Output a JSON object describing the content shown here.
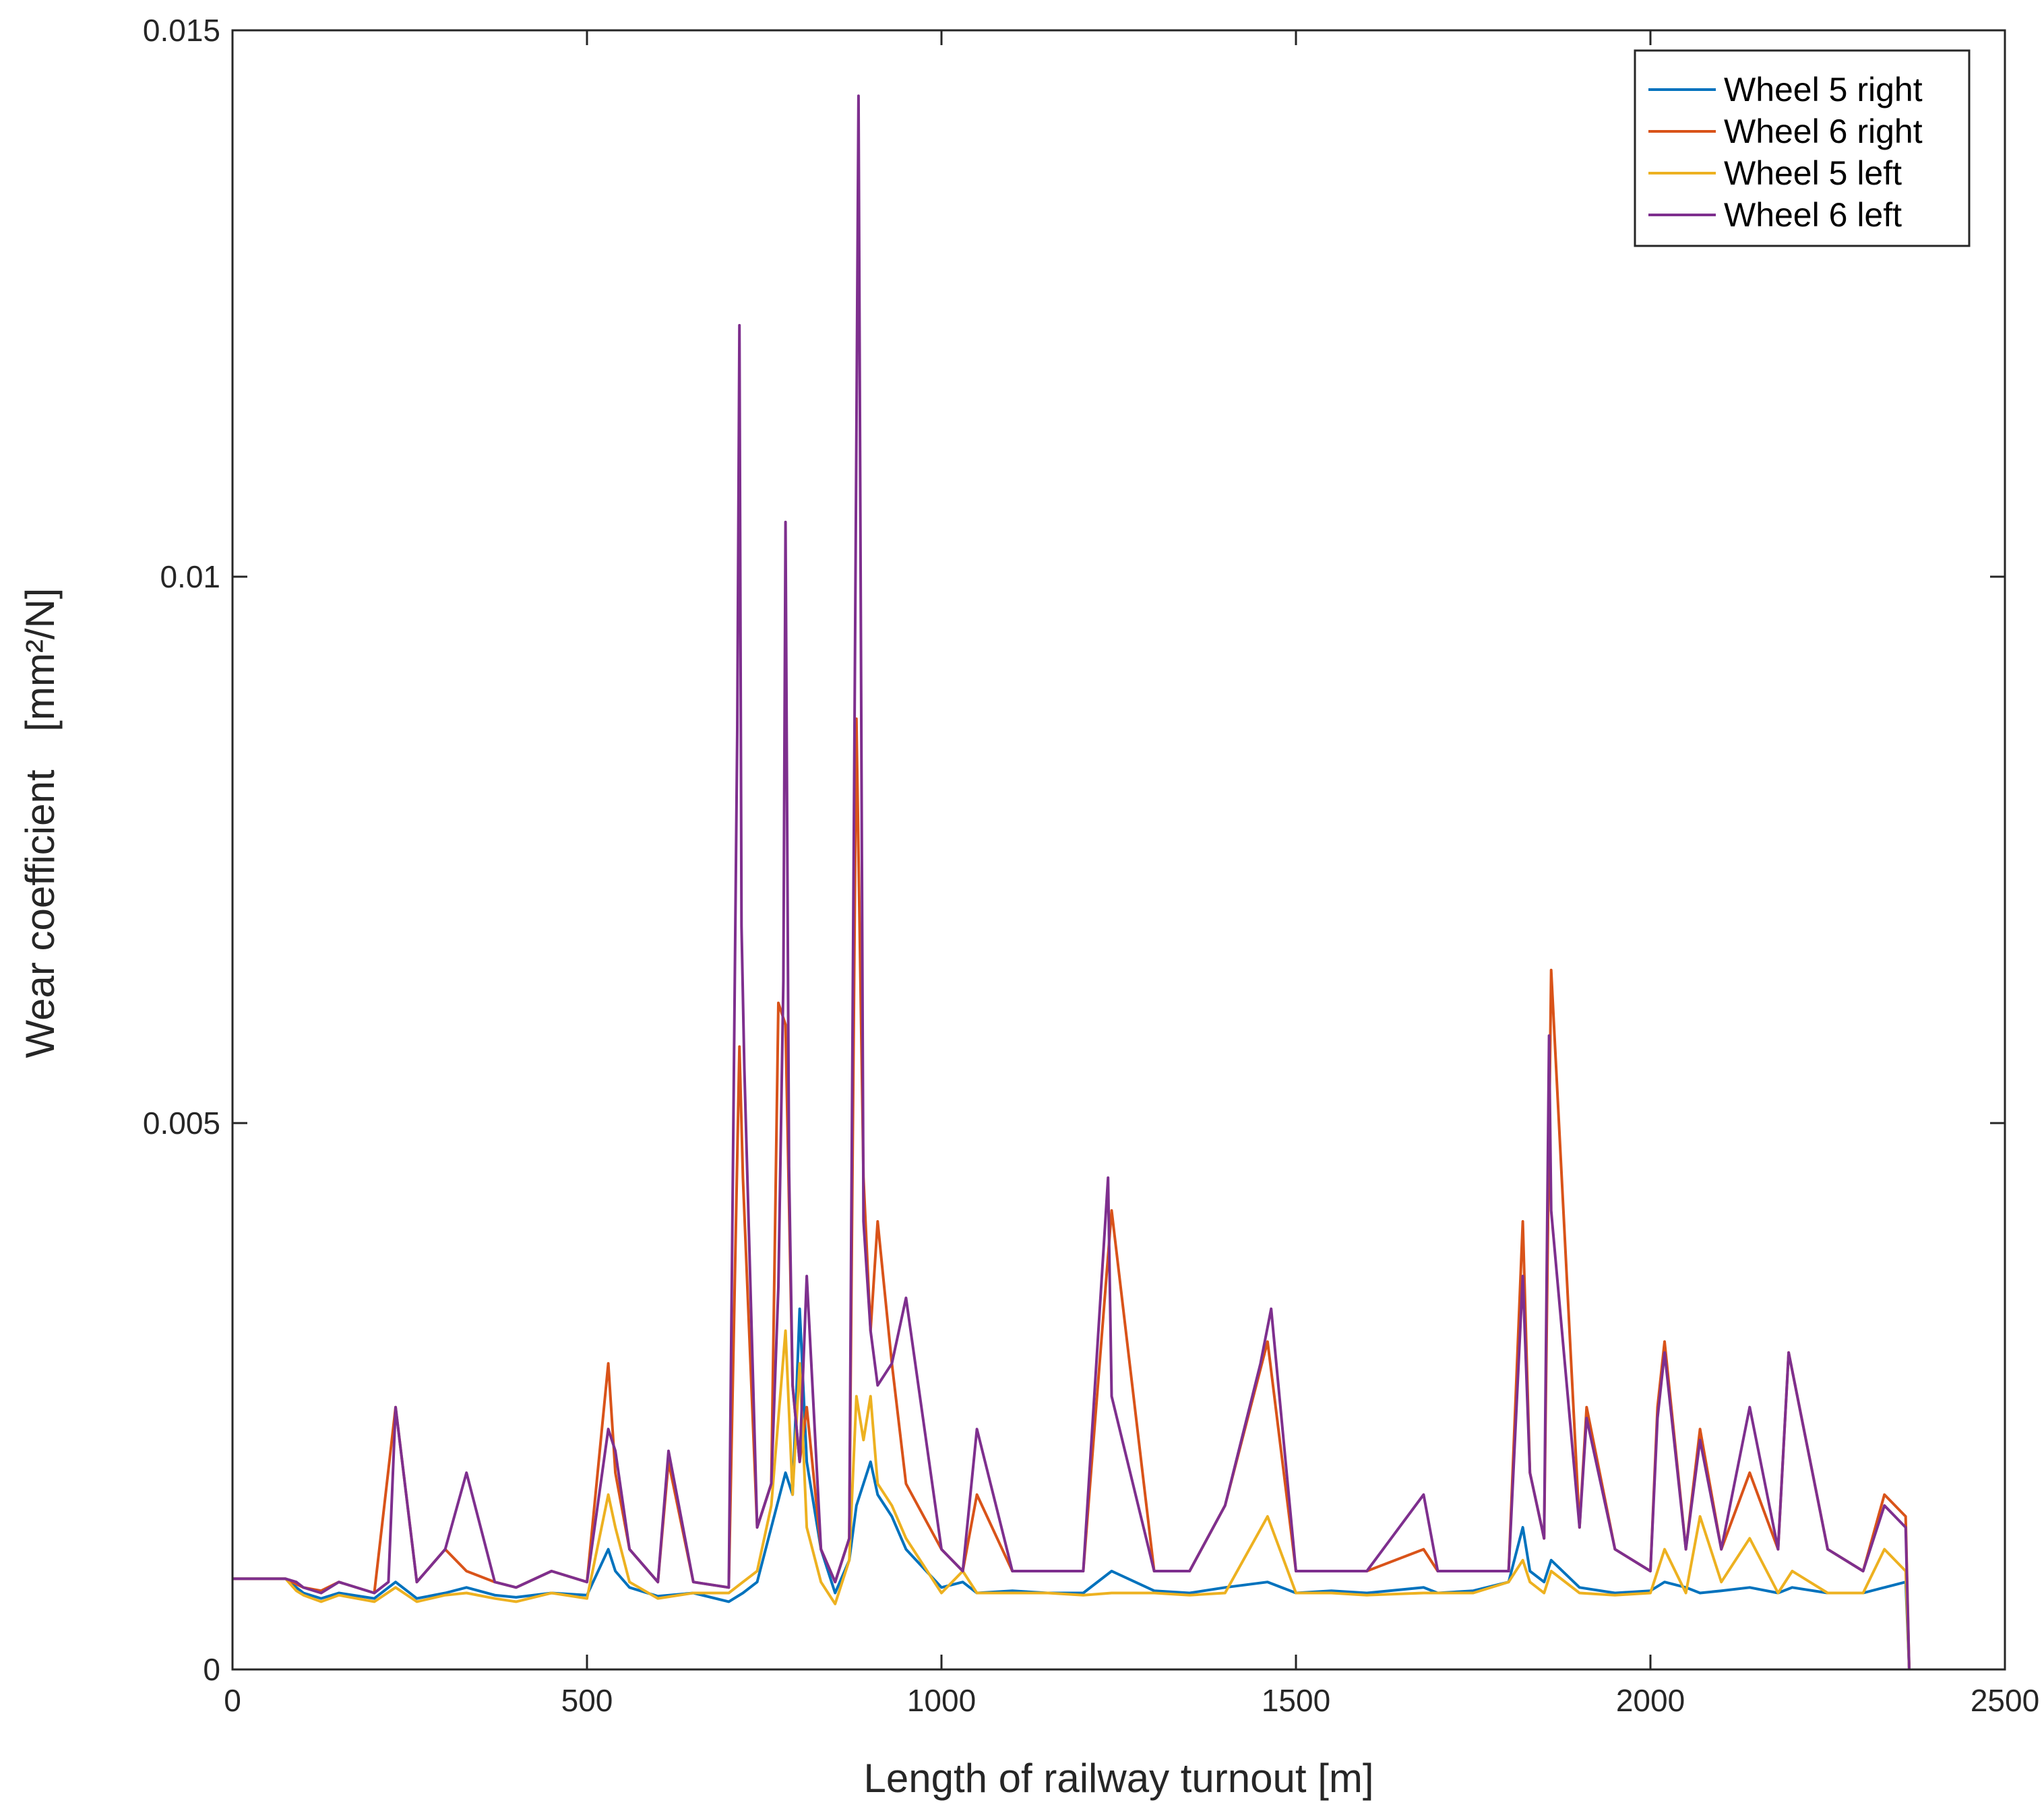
{
  "chart_data": {
    "type": "line",
    "xlabel": "Length of railway turnout [m]",
    "ylabel_main": "Wear coefficient",
    "ylabel_unit": "[mm²/N]",
    "xlim": [
      0,
      2500
    ],
    "ylim": [
      0,
      0.015
    ],
    "xticks": [
      0,
      500,
      1000,
      1500,
      2000,
      2500
    ],
    "xtick_labels": [
      "0",
      "500",
      "1000",
      "1500",
      "2000",
      "2500"
    ],
    "yticks": [
      0,
      0.005,
      0.01,
      0.015
    ],
    "ytick_labels": [
      "0",
      "0.005",
      "0.01",
      "0.015"
    ],
    "grid": false,
    "legend_position": "top-right",
    "series": [
      {
        "name": "Wheel 5 right",
        "color": "#0072BD",
        "x": [
          0,
          75,
          90,
          100,
          125,
          150,
          200,
          230,
          260,
          300,
          330,
          370,
          400,
          450,
          500,
          530,
          540,
          560,
          600,
          650,
          700,
          720,
          740,
          760,
          780,
          790,
          800,
          810,
          830,
          850,
          870,
          880,
          890,
          900,
          910,
          930,
          950,
          1000,
          1030,
          1050,
          1100,
          1150,
          1200,
          1240,
          1300,
          1350,
          1400,
          1460,
          1500,
          1550,
          1600,
          1680,
          1700,
          1750,
          1800,
          1820,
          1830,
          1850,
          1860,
          1900,
          1950,
          2000,
          2020,
          2050,
          2070,
          2100,
          2140,
          2180,
          2200,
          2250,
          2300,
          2330,
          2360,
          2365
        ],
        "y": [
          0.00083,
          0.00083,
          0.00075,
          0.0007,
          0.00065,
          0.0007,
          0.00065,
          0.0008,
          0.00065,
          0.0007,
          0.00075,
          0.00068,
          0.00066,
          0.0007,
          0.00068,
          0.0011,
          0.0009,
          0.00075,
          0.00067,
          0.0007,
          0.00062,
          0.0007,
          0.0008,
          0.0013,
          0.0018,
          0.0016,
          0.0033,
          0.0019,
          0.0011,
          0.0007,
          0.001,
          0.0015,
          0.0017,
          0.0019,
          0.0016,
          0.0014,
          0.0011,
          0.00075,
          0.0008,
          0.0007,
          0.00072,
          0.0007,
          0.0007,
          0.0009,
          0.00072,
          0.0007,
          0.00075,
          0.0008,
          0.0007,
          0.00072,
          0.0007,
          0.00075,
          0.0007,
          0.00072,
          0.0008,
          0.0013,
          0.0009,
          0.0008,
          0.001,
          0.00075,
          0.0007,
          0.00072,
          0.0008,
          0.00075,
          0.0007,
          0.00072,
          0.00075,
          0.0007,
          0.00075,
          0.0007,
          0.0007,
          0.00075,
          0.0008,
          0
        ]
      },
      {
        "name": "Wheel 6 right",
        "color": "#D95319",
        "x": [
          0,
          75,
          90,
          100,
          125,
          150,
          200,
          230,
          260,
          300,
          330,
          370,
          400,
          450,
          500,
          530,
          540,
          560,
          600,
          615,
          650,
          700,
          715,
          720,
          740,
          760,
          770,
          780,
          790,
          800,
          810,
          830,
          850,
          870,
          880,
          890,
          900,
          910,
          930,
          950,
          1000,
          1030,
          1050,
          1100,
          1150,
          1200,
          1240,
          1300,
          1350,
          1400,
          1460,
          1500,
          1550,
          1600,
          1680,
          1700,
          1750,
          1800,
          1820,
          1830,
          1850,
          1860,
          1900,
          1910,
          1950,
          2000,
          2010,
          2020,
          2050,
          2070,
          2100,
          2140,
          2180,
          2195,
          2250,
          2300,
          2330,
          2360,
          2365
        ],
        "y": [
          0.00083,
          0.00083,
          0.00078,
          0.00075,
          0.00072,
          0.0008,
          0.0007,
          0.0024,
          0.0008,
          0.0011,
          0.0009,
          0.0008,
          0.00075,
          0.0009,
          0.0008,
          0.0028,
          0.0018,
          0.0011,
          0.0008,
          0.0019,
          0.0008,
          0.00075,
          0.0057,
          0.0045,
          0.0013,
          0.0017,
          0.0061,
          0.0059,
          0.0026,
          0.0019,
          0.0024,
          0.0011,
          0.0008,
          0.0012,
          0.0087,
          0.0045,
          0.0031,
          0.0041,
          0.0028,
          0.0017,
          0.0011,
          0.0009,
          0.0016,
          0.0009,
          0.0009,
          0.0009,
          0.0042,
          0.0009,
          0.0009,
          0.0015,
          0.003,
          0.0009,
          0.0009,
          0.0009,
          0.0011,
          0.0009,
          0.0009,
          0.0009,
          0.0041,
          0.0018,
          0.0012,
          0.0064,
          0.0013,
          0.0024,
          0.0011,
          0.0009,
          0.0024,
          0.003,
          0.0011,
          0.0022,
          0.0011,
          0.0018,
          0.0011,
          0.0029,
          0.0011,
          0.0009,
          0.0016,
          0.0014,
          0
        ]
      },
      {
        "name": "Wheel 5 left",
        "color": "#EDB120",
        "x": [
          0,
          75,
          90,
          100,
          125,
          150,
          200,
          230,
          260,
          300,
          330,
          370,
          400,
          450,
          500,
          530,
          540,
          560,
          600,
          650,
          700,
          720,
          740,
          760,
          780,
          790,
          800,
          810,
          830,
          850,
          870,
          880,
          890,
          900,
          910,
          930,
          950,
          1000,
          1030,
          1050,
          1100,
          1150,
          1200,
          1240,
          1300,
          1350,
          1400,
          1460,
          1500,
          1550,
          1600,
          1680,
          1700,
          1750,
          1800,
          1820,
          1830,
          1850,
          1860,
          1900,
          1950,
          2000,
          2020,
          2050,
          2070,
          2100,
          2140,
          2180,
          2200,
          2250,
          2300,
          2330,
          2360,
          2365
        ],
        "y": [
          0.00083,
          0.00083,
          0.00072,
          0.00068,
          0.00062,
          0.00068,
          0.00062,
          0.00075,
          0.00062,
          0.00068,
          0.0007,
          0.00065,
          0.00062,
          0.0007,
          0.00065,
          0.0016,
          0.0013,
          0.0008,
          0.00065,
          0.0007,
          0.0007,
          0.0008,
          0.0009,
          0.0015,
          0.0031,
          0.0016,
          0.0028,
          0.0013,
          0.0008,
          0.0006,
          0.001,
          0.0025,
          0.0021,
          0.0025,
          0.0017,
          0.0015,
          0.0012,
          0.0007,
          0.0009,
          0.0007,
          0.0007,
          0.0007,
          0.00068,
          0.0007,
          0.0007,
          0.00068,
          0.0007,
          0.0014,
          0.0007,
          0.0007,
          0.00068,
          0.0007,
          0.0007,
          0.0007,
          0.0008,
          0.001,
          0.0008,
          0.0007,
          0.0009,
          0.0007,
          0.00068,
          0.0007,
          0.0011,
          0.0007,
          0.0014,
          0.0008,
          0.0012,
          0.0007,
          0.0009,
          0.0007,
          0.0007,
          0.0011,
          0.0009,
          0
        ]
      },
      {
        "name": "Wheel 6 left",
        "color": "#7E2F8E",
        "x": [
          0,
          75,
          90,
          100,
          125,
          150,
          200,
          220,
          230,
          260,
          300,
          330,
          370,
          400,
          450,
          500,
          530,
          540,
          560,
          600,
          615,
          650,
          700,
          712,
          715,
          718,
          722,
          740,
          760,
          770,
          777,
          780,
          785,
          790,
          800,
          810,
          830,
          850,
          870,
          880,
          883,
          890,
          900,
          910,
          930,
          950,
          1000,
          1030,
          1050,
          1100,
          1150,
          1200,
          1235,
          1240,
          1300,
          1350,
          1400,
          1450,
          1465,
          1500,
          1550,
          1600,
          1680,
          1700,
          1750,
          1800,
          1820,
          1830,
          1850,
          1857,
          1860,
          1900,
          1910,
          1950,
          2000,
          2010,
          2020,
          2050,
          2070,
          2100,
          2140,
          2180,
          2195,
          2250,
          2300,
          2330,
          2360,
          2365
        ],
        "y": [
          0.00083,
          0.00083,
          0.0008,
          0.00075,
          0.0007,
          0.0008,
          0.0007,
          0.0008,
          0.0024,
          0.0008,
          0.0011,
          0.0018,
          0.0008,
          0.00075,
          0.0009,
          0.0008,
          0.0022,
          0.002,
          0.0011,
          0.0008,
          0.002,
          0.0008,
          0.00075,
          0.0086,
          0.0123,
          0.0068,
          0.0055,
          0.0013,
          0.0017,
          0.0035,
          0.0063,
          0.0105,
          0.0046,
          0.0026,
          0.0019,
          0.0036,
          0.0011,
          0.0008,
          0.0012,
          0.0113,
          0.0144,
          0.0041,
          0.0031,
          0.0026,
          0.0028,
          0.0034,
          0.0011,
          0.0009,
          0.0022,
          0.0009,
          0.0009,
          0.0009,
          0.0045,
          0.0025,
          0.0009,
          0.0009,
          0.0015,
          0.0028,
          0.0033,
          0.0009,
          0.0009,
          0.0009,
          0.0016,
          0.0009,
          0.0009,
          0.0009,
          0.0036,
          0.0018,
          0.0012,
          0.0058,
          0.0042,
          0.0013,
          0.0023,
          0.0011,
          0.0009,
          0.0023,
          0.0029,
          0.0011,
          0.0021,
          0.0011,
          0.0024,
          0.0011,
          0.0029,
          0.0011,
          0.0009,
          0.0015,
          0.0013,
          0
        ]
      }
    ]
  }
}
